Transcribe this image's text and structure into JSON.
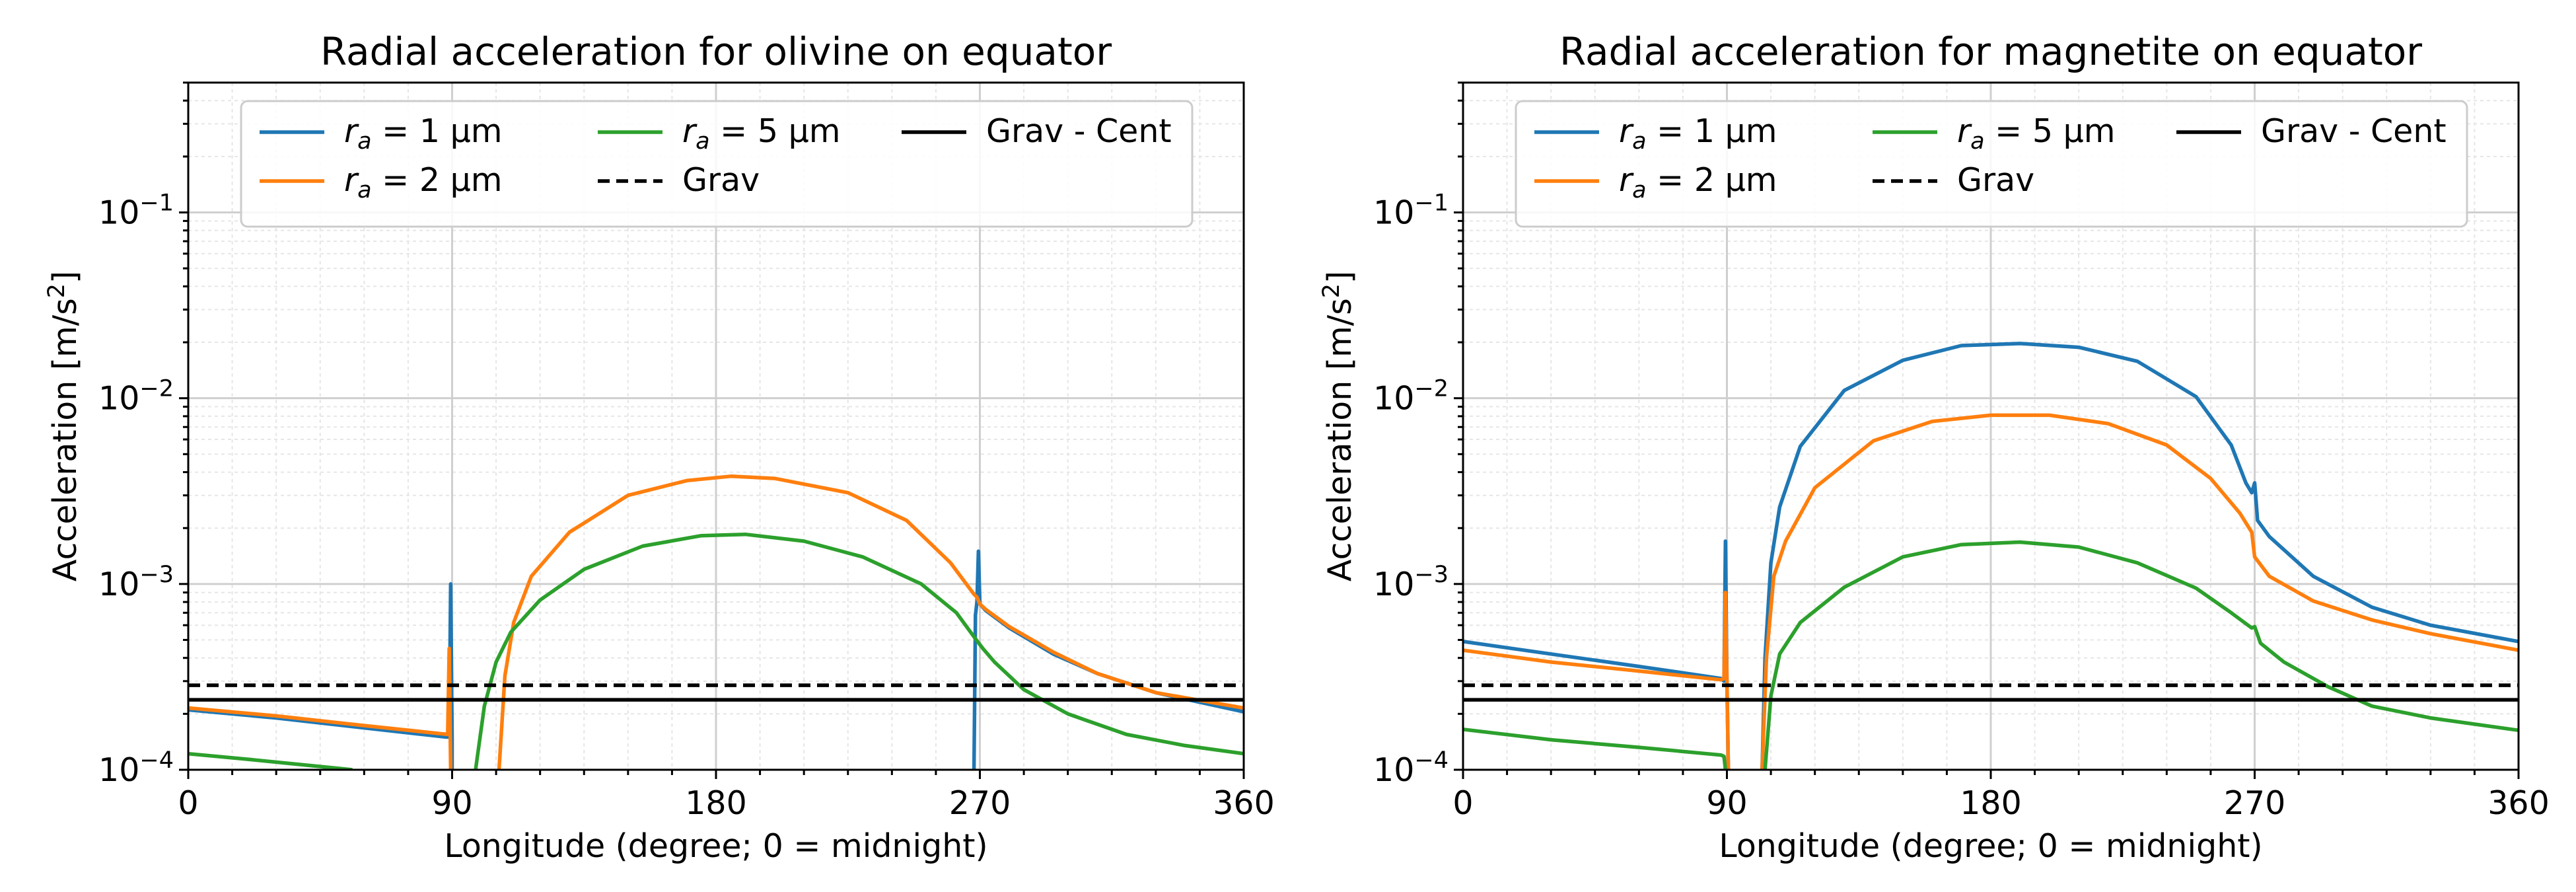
{
  "chart_data": [
    {
      "type": "line",
      "title": "Radial acceleration for olivine on equator",
      "xlabel": "Longitude (degree; 0 = midnight)",
      "ylabel": "Acceleration [m/s²]",
      "yscale": "log",
      "xlim": [
        0,
        360
      ],
      "ylim": [
        0.0001,
        0.5
      ],
      "xticks": [
        "0",
        "90",
        "180",
        "270",
        "360"
      ],
      "yticks": [
        {
          "base": "10",
          "exp": "−4",
          "value": 0.0001
        },
        {
          "base": "10",
          "exp": "−3",
          "value": 0.001
        },
        {
          "base": "10",
          "exp": "−2",
          "value": 0.01
        },
        {
          "base": "10",
          "exp": "−1",
          "value": 0.1
        }
      ],
      "grid": true,
      "legend_position": "top-center",
      "series": [
        {
          "name": "r_a = 1 µm",
          "legend_label": "= 1 µm",
          "color": "#1f77b4",
          "style": "solid",
          "points": [
            [
              0,
              0.00021
            ],
            [
              30,
              0.00019
            ],
            [
              60,
              0.000168
            ],
            [
              88,
              0.00015
            ],
            [
              89,
              0.00015
            ],
            [
              89.5,
              0.001
            ],
            [
              90,
              0.00015
            ],
            [
              90,
              0.0001
            ]
          ],
          "points2": [
            [
              268,
              0.0001
            ],
            [
              268.5,
              0.00068
            ],
            [
              269,
              0.0008
            ],
            [
              269.5,
              0.0015
            ],
            [
              270,
              0.00078
            ],
            [
              272,
              0.00072
            ],
            [
              280,
              0.00058
            ],
            [
              295,
              0.00042
            ],
            [
              310,
              0.00033
            ],
            [
              330,
              0.00026
            ],
            [
              360,
              0.000205
            ]
          ]
        },
        {
          "name": "r_a = 2 µm",
          "legend_label": "= 2 µm",
          "color": "#ff7f0e",
          "style": "solid",
          "points": [
            [
              0,
              0.000215
            ],
            [
              30,
              0.000195
            ],
            [
              60,
              0.000173
            ],
            [
              88.5,
              0.000155
            ],
            [
              89,
              0.00045
            ],
            [
              89.5,
              0.0001
            ]
          ],
          "points2": [
            [
              106,
              0.0001
            ],
            [
              108,
              0.00032
            ],
            [
              111,
              0.00062
            ],
            [
              117,
              0.0011
            ],
            [
              130,
              0.0019
            ],
            [
              150,
              0.003
            ],
            [
              170,
              0.0036
            ],
            [
              185,
              0.0038
            ],
            [
              200,
              0.0037
            ],
            [
              225,
              0.0031
            ],
            [
              245,
              0.0022
            ],
            [
              260,
              0.0013
            ],
            [
              268,
              0.00088
            ],
            [
              269,
              0.00085
            ],
            [
              270,
              0.00078
            ],
            [
              272,
              0.00073
            ],
            [
              280,
              0.00059
            ],
            [
              295,
              0.00043
            ],
            [
              310,
              0.00033
            ],
            [
              330,
              0.00026
            ],
            [
              360,
              0.000215
            ]
          ]
        },
        {
          "name": "r_a = 5 µm",
          "legend_label": "= 5 µm",
          "color": "#2ca02c",
          "style": "solid",
          "points": [
            [
              0,
              0.000122
            ],
            [
              20,
              0.000114
            ],
            [
              40,
              0.000106
            ],
            [
              56,
              0.0001
            ]
          ],
          "points2": [
            [
              98,
              0.0001
            ],
            [
              101,
              0.00022
            ],
            [
              105,
              0.00038
            ],
            [
              110,
              0.00055
            ],
            [
              120,
              0.00082
            ],
            [
              135,
              0.0012
            ],
            [
              155,
              0.0016
            ],
            [
              175,
              0.00182
            ],
            [
              190,
              0.00185
            ],
            [
              210,
              0.0017
            ],
            [
              230,
              0.0014
            ],
            [
              250,
              0.001
            ],
            [
              262,
              0.0007
            ],
            [
              268,
              0.00052
            ],
            [
              271,
              0.00045
            ],
            [
              275,
              0.00038
            ],
            [
              285,
              0.00027
            ],
            [
              300,
              0.0002
            ],
            [
              320,
              0.000155
            ],
            [
              340,
              0.000135
            ],
            [
              360,
              0.000122
            ]
          ]
        },
        {
          "name": "Grav",
          "legend_label": "Grav",
          "color": "#000000",
          "style": "dashed",
          "points": [
            [
              0,
              0.000285
            ],
            [
              360,
              0.000285
            ]
          ]
        },
        {
          "name": "Grav - Cent",
          "legend_label": "Grav - Cent",
          "color": "#000000",
          "style": "solid",
          "points": [
            [
              0,
              0.000238
            ],
            [
              360,
              0.000238
            ]
          ]
        }
      ]
    },
    {
      "type": "line",
      "title": "Radial acceleration for magnetite on equator",
      "xlabel": "Longitude (degree; 0 = midnight)",
      "ylabel": "Acceleration [m/s²]",
      "yscale": "log",
      "xlim": [
        0,
        360
      ],
      "ylim": [
        0.0001,
        0.5
      ],
      "xticks": [
        "0",
        "90",
        "180",
        "270",
        "360"
      ],
      "yticks": [
        {
          "base": "10",
          "exp": "−4",
          "value": 0.0001
        },
        {
          "base": "10",
          "exp": "−3",
          "value": 0.001
        },
        {
          "base": "10",
          "exp": "−2",
          "value": 0.01
        },
        {
          "base": "10",
          "exp": "−1",
          "value": 0.1
        }
      ],
      "grid": true,
      "legend_position": "top-center",
      "series": [
        {
          "name": "r_a = 1 µm",
          "legend_label": "= 1 µm",
          "color": "#1f77b4",
          "style": "solid",
          "points": [
            [
              0,
              0.00049
            ],
            [
              30,
              0.00042
            ],
            [
              60,
              0.00036
            ],
            [
              88,
              0.00031
            ],
            [
              89,
              0.0003
            ],
            [
              89.5,
              0.0017
            ],
            [
              90,
              0.0003
            ],
            [
              90.5,
              0.0001
            ]
          ],
          "points2": [
            [
              102,
              0.0001
            ],
            [
              103,
              0.0004
            ],
            [
              105,
              0.0013
            ],
            [
              108,
              0.0026
            ],
            [
              115,
              0.0055
            ],
            [
              130,
              0.011
            ],
            [
              150,
              0.016
            ],
            [
              170,
              0.0192
            ],
            [
              190,
              0.0197
            ],
            [
              210,
              0.0188
            ],
            [
              230,
              0.0158
            ],
            [
              250,
              0.0102
            ],
            [
              262,
              0.0056
            ],
            [
              267,
              0.0035
            ],
            [
              269,
              0.0031
            ],
            [
              270,
              0.0035
            ],
            [
              271,
              0.0022
            ],
            [
              275,
              0.0018
            ],
            [
              290,
              0.0011
            ],
            [
              310,
              0.00075
            ],
            [
              330,
              0.0006
            ],
            [
              360,
              0.00049
            ]
          ]
        },
        {
          "name": "r_a = 2 µm",
          "legend_label": "= 2 µm",
          "color": "#ff7f0e",
          "style": "solid",
          "points": [
            [
              0,
              0.00044
            ],
            [
              30,
              0.00038
            ],
            [
              60,
              0.00034
            ],
            [
              88,
              0.000305
            ],
            [
              89,
              0.00031
            ],
            [
              89.5,
              0.0009
            ],
            [
              90,
              0.000305
            ],
            [
              90.5,
              0.0001
            ]
          ],
          "points2": [
            [
              102,
              0.0001
            ],
            [
              103.5,
              0.0004
            ],
            [
              106,
              0.0011
            ],
            [
              110,
              0.0017
            ],
            [
              120,
              0.0033
            ],
            [
              140,
              0.0059
            ],
            [
              160,
              0.0075
            ],
            [
              180,
              0.0081
            ],
            [
              200,
              0.0081
            ],
            [
              220,
              0.0073
            ],
            [
              240,
              0.0056
            ],
            [
              255,
              0.0037
            ],
            [
              265,
              0.0024
            ],
            [
              269,
              0.0019
            ],
            [
              270,
              0.0014
            ],
            [
              275,
              0.0011
            ],
            [
              290,
              0.00081
            ],
            [
              310,
              0.00064
            ],
            [
              330,
              0.00054
            ],
            [
              360,
              0.00044
            ]
          ]
        },
        {
          "name": "r_a = 5 µm",
          "legend_label": "= 5 µm",
          "color": "#2ca02c",
          "style": "solid",
          "points": [
            [
              0,
              0.000165
            ],
            [
              30,
              0.000145
            ],
            [
              60,
              0.000132
            ],
            [
              88,
              0.00012
            ],
            [
              89,
              0.000118
            ],
            [
              89.5,
              0.0001
            ]
          ],
          "points2": [
            [
              103,
              0.0001
            ],
            [
              105,
              0.00025
            ],
            [
              108,
              0.00042
            ],
            [
              115,
              0.00062
            ],
            [
              130,
              0.00096
            ],
            [
              150,
              0.0014
            ],
            [
              170,
              0.00163
            ],
            [
              190,
              0.00168
            ],
            [
              210,
              0.00158
            ],
            [
              230,
              0.0013
            ],
            [
              250,
              0.00095
            ],
            [
              262,
              0.0007
            ],
            [
              269,
              0.00058
            ],
            [
              270,
              0.00059
            ],
            [
              272,
              0.00048
            ],
            [
              280,
              0.00038
            ],
            [
              295,
              0.00028
            ],
            [
              310,
              0.00022
            ],
            [
              330,
              0.00019
            ],
            [
              360,
              0.000163
            ]
          ]
        },
        {
          "name": "Grav",
          "legend_label": "Grav",
          "color": "#000000",
          "style": "dashed",
          "points": [
            [
              0,
              0.000285
            ],
            [
              360,
              0.000285
            ]
          ]
        },
        {
          "name": "Grav - Cent",
          "legend_label": "Grav - Cent",
          "color": "#000000",
          "style": "solid",
          "points": [
            [
              0,
              0.000238
            ],
            [
              360,
              0.000238
            ]
          ]
        }
      ]
    }
  ]
}
